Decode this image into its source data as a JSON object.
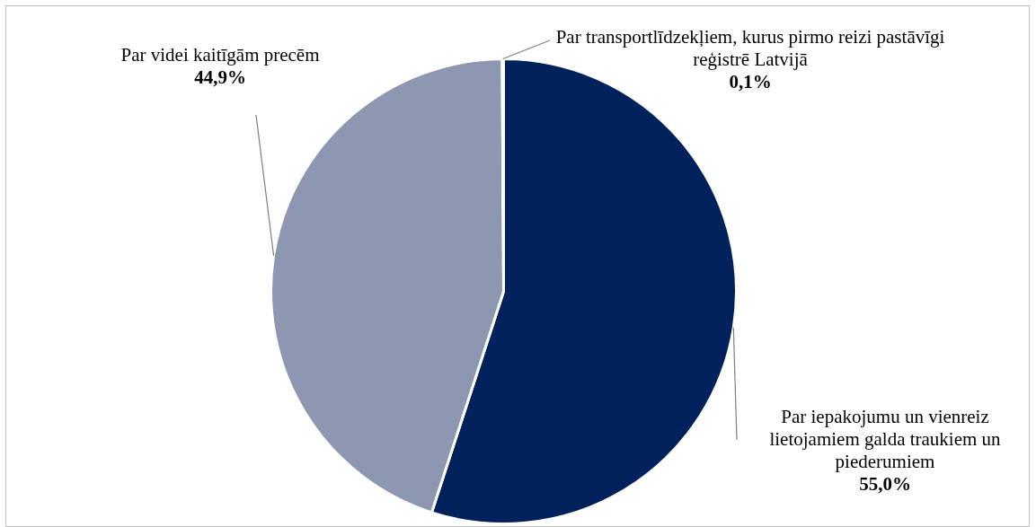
{
  "chart_data": {
    "type": "pie",
    "categories": [
      "Par iepakojumu un vienreiz lietojamiem galda traukiem un piederumiem",
      "Par videi kaitīgām precēm",
      "Par transportlīdzekļiem, kurus pirmo reizi pastāvīgi reģistrē Latvijā"
    ],
    "values": [
      55.0,
      44.9,
      0.1
    ],
    "colors": [
      "#00215b",
      "#8e97b2",
      "#00215b"
    ],
    "value_labels": [
      "55,0%",
      "44,9%",
      "0,1%"
    ],
    "legend": false
  }
}
